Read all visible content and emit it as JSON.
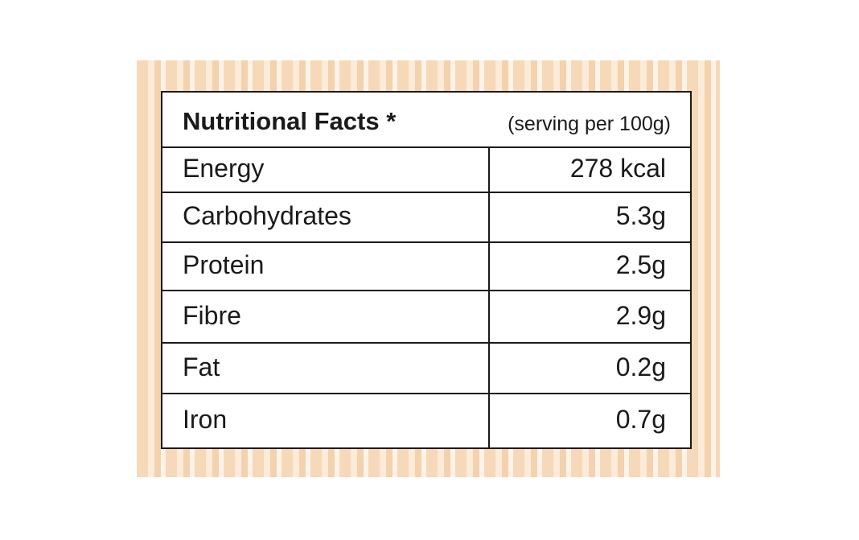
{
  "table": {
    "title": "Nutritional Facts *",
    "subtitle": "(serving per 100g)",
    "rows": [
      [
        "Energy",
        "278 kcal"
      ],
      [
        "Carbohydrates",
        "5.3g"
      ],
      [
        "Protein",
        "2.5g"
      ],
      [
        "Fibre",
        "2.9g"
      ],
      [
        "Fat",
        "0.2g"
      ],
      [
        "Iron",
        "0.7g"
      ]
    ]
  }
}
